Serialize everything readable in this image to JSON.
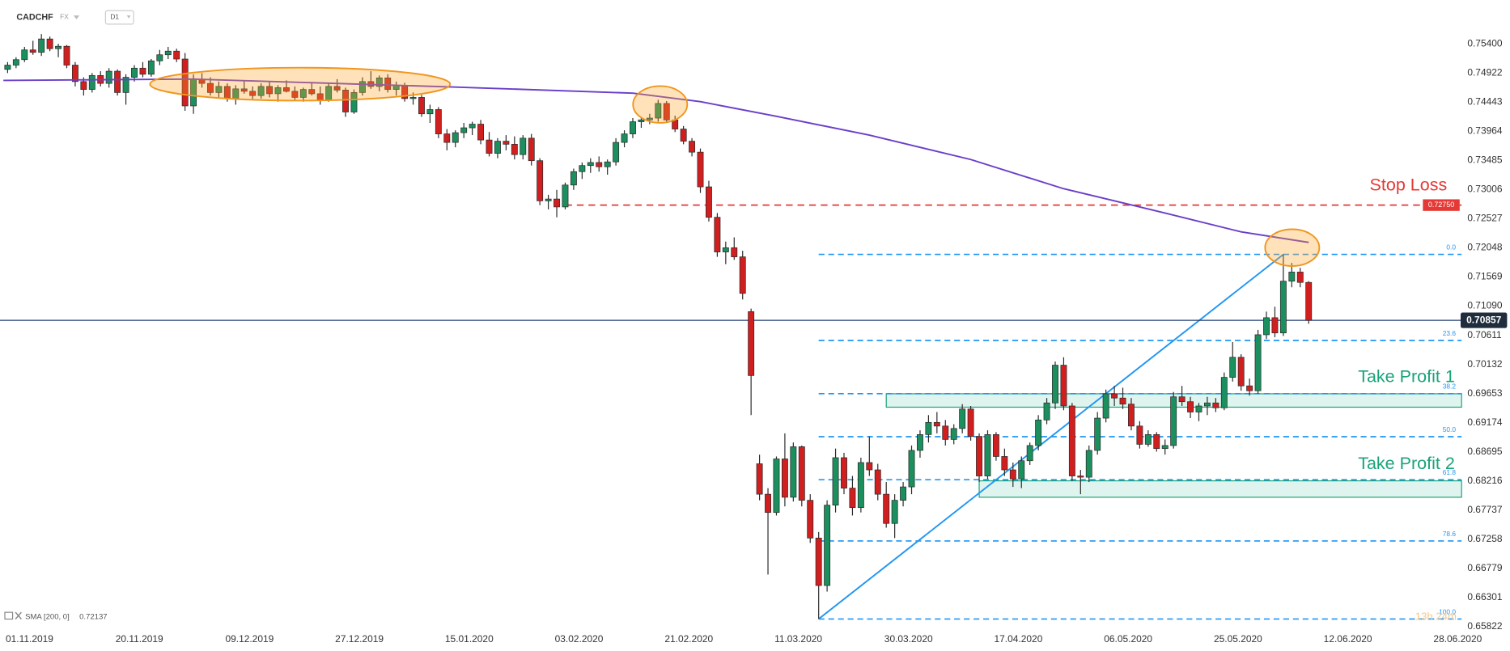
{
  "chart_data": {
    "type": "candlestick",
    "symbol": "CADCHF",
    "market": "FX",
    "timeframe": "D1",
    "colors": {
      "up": "#1b8f5e",
      "down": "#d11f1f",
      "outline": "#2b2b2b"
    },
    "candles": [
      [
        0.7498,
        0.751,
        0.7492,
        0.7505
      ],
      [
        0.7505,
        0.7518,
        0.75,
        0.7514
      ],
      [
        0.7514,
        0.7535,
        0.751,
        0.753
      ],
      [
        0.753,
        0.7545,
        0.7522,
        0.7526
      ],
      [
        0.7526,
        0.7556,
        0.752,
        0.7548
      ],
      [
        0.7548,
        0.7552,
        0.7528,
        0.7532
      ],
      [
        0.7532,
        0.754,
        0.7518,
        0.7536
      ],
      [
        0.7536,
        0.7538,
        0.75,
        0.7505
      ],
      [
        0.7505,
        0.751,
        0.747,
        0.7478
      ],
      [
        0.7478,
        0.7485,
        0.7455,
        0.7465
      ],
      [
        0.7465,
        0.7492,
        0.746,
        0.7488
      ],
      [
        0.7488,
        0.7495,
        0.747,
        0.7475
      ],
      [
        0.7475,
        0.75,
        0.7468,
        0.7495
      ],
      [
        0.7495,
        0.7498,
        0.7455,
        0.746
      ],
      [
        0.746,
        0.749,
        0.744,
        0.7485
      ],
      [
        0.7485,
        0.7505,
        0.7478,
        0.75
      ],
      [
        0.75,
        0.751,
        0.7485,
        0.749
      ],
      [
        0.749,
        0.7515,
        0.7486,
        0.7512
      ],
      [
        0.7512,
        0.753,
        0.7505,
        0.7522
      ],
      [
        0.7522,
        0.7535,
        0.7515,
        0.7528
      ],
      [
        0.7528,
        0.7532,
        0.751,
        0.7515
      ],
      [
        0.7515,
        0.7525,
        0.743,
        0.7438
      ],
      [
        0.7438,
        0.749,
        0.7425,
        0.7482
      ],
      [
        0.7482,
        0.7492,
        0.7468,
        0.7475
      ],
      [
        0.7475,
        0.7485,
        0.7455,
        0.746
      ],
      [
        0.746,
        0.7478,
        0.7452,
        0.747
      ],
      [
        0.747,
        0.7475,
        0.7445,
        0.745
      ],
      [
        0.745,
        0.7472,
        0.744,
        0.7466
      ],
      [
        0.7466,
        0.748,
        0.7458,
        0.7462
      ],
      [
        0.7462,
        0.747,
        0.7448,
        0.7455
      ],
      [
        0.7455,
        0.7475,
        0.745,
        0.747
      ],
      [
        0.747,
        0.7478,
        0.7452,
        0.7458
      ],
      [
        0.7458,
        0.7472,
        0.7445,
        0.7468
      ],
      [
        0.7468,
        0.748,
        0.746,
        0.7462
      ],
      [
        0.7462,
        0.747,
        0.7448,
        0.7452
      ],
      [
        0.7452,
        0.7468,
        0.7445,
        0.7465
      ],
      [
        0.7465,
        0.7475,
        0.7455,
        0.7458
      ],
      [
        0.7458,
        0.747,
        0.744,
        0.7448
      ],
      [
        0.7448,
        0.7475,
        0.7445,
        0.747
      ],
      [
        0.747,
        0.7482,
        0.746,
        0.7464
      ],
      [
        0.7464,
        0.7468,
        0.742,
        0.7428
      ],
      [
        0.7428,
        0.7465,
        0.7425,
        0.746
      ],
      [
        0.746,
        0.7485,
        0.7455,
        0.7478
      ],
      [
        0.7478,
        0.7495,
        0.7466,
        0.747
      ],
      [
        0.747,
        0.7488,
        0.7462,
        0.7484
      ],
      [
        0.7484,
        0.749,
        0.746,
        0.7465
      ],
      [
        0.7465,
        0.7478,
        0.7455,
        0.7472
      ],
      [
        0.7472,
        0.7476,
        0.7445,
        0.745
      ],
      [
        0.745,
        0.746,
        0.744,
        0.7452
      ],
      [
        0.7452,
        0.7456,
        0.742,
        0.7425
      ],
      [
        0.7425,
        0.744,
        0.741,
        0.7432
      ],
      [
        0.7432,
        0.7436,
        0.7385,
        0.7392
      ],
      [
        0.7392,
        0.74,
        0.7365,
        0.7378
      ],
      [
        0.7378,
        0.7398,
        0.737,
        0.7394
      ],
      [
        0.7394,
        0.741,
        0.7385,
        0.7402
      ],
      [
        0.7402,
        0.7412,
        0.739,
        0.7408
      ],
      [
        0.7408,
        0.7415,
        0.7375,
        0.7382
      ],
      [
        0.7382,
        0.7395,
        0.7355,
        0.736
      ],
      [
        0.736,
        0.7385,
        0.7352,
        0.738
      ],
      [
        0.738,
        0.739,
        0.7365,
        0.7375
      ],
      [
        0.7375,
        0.7388,
        0.735,
        0.7358
      ],
      [
        0.7358,
        0.739,
        0.735,
        0.7385
      ],
      [
        0.7385,
        0.7392,
        0.734,
        0.7348
      ],
      [
        0.7348,
        0.7352,
        0.7275,
        0.7282
      ],
      [
        0.7282,
        0.7292,
        0.7268,
        0.7285
      ],
      [
        0.7285,
        0.73,
        0.7255,
        0.7272
      ],
      [
        0.7272,
        0.7312,
        0.7268,
        0.7308
      ],
      [
        0.7308,
        0.7335,
        0.73,
        0.733
      ],
      [
        0.733,
        0.7345,
        0.7318,
        0.734
      ],
      [
        0.734,
        0.7352,
        0.7328,
        0.7345
      ],
      [
        0.7345,
        0.7355,
        0.733,
        0.7338
      ],
      [
        0.7338,
        0.735,
        0.7325,
        0.7346
      ],
      [
        0.7346,
        0.7385,
        0.734,
        0.7378
      ],
      [
        0.7378,
        0.7398,
        0.737,
        0.7392
      ],
      [
        0.7392,
        0.7418,
        0.7385,
        0.7412
      ],
      [
        0.7412,
        0.742,
        0.7402,
        0.7415
      ],
      [
        0.7415,
        0.7425,
        0.7408,
        0.7418
      ],
      [
        0.7418,
        0.7448,
        0.7412,
        0.7442
      ],
      [
        0.7442,
        0.7446,
        0.741,
        0.7415
      ],
      [
        0.7415,
        0.7422,
        0.7395,
        0.74
      ],
      [
        0.74,
        0.7405,
        0.7375,
        0.738
      ],
      [
        0.738,
        0.7385,
        0.7355,
        0.7362
      ],
      [
        0.7362,
        0.7368,
        0.7295,
        0.7305
      ],
      [
        0.7305,
        0.7315,
        0.7248,
        0.7255
      ],
      [
        0.7255,
        0.7262,
        0.719,
        0.7198
      ],
      [
        0.7198,
        0.7215,
        0.7178,
        0.7205
      ],
      [
        0.7205,
        0.7222,
        0.7185,
        0.719
      ],
      [
        0.719,
        0.72,
        0.712,
        0.713
      ],
      [
        0.71,
        0.7105,
        0.693,
        0.6995
      ],
      [
        0.685,
        0.6865,
        0.679,
        0.68
      ],
      [
        0.68,
        0.681,
        0.6668,
        0.677
      ],
      [
        0.677,
        0.6862,
        0.6765,
        0.6858
      ],
      [
        0.6858,
        0.69,
        0.678,
        0.6795
      ],
      [
        0.6795,
        0.6885,
        0.6788,
        0.6878
      ],
      [
        0.6878,
        0.688,
        0.678,
        0.679
      ],
      [
        0.679,
        0.68,
        0.672,
        0.6728
      ],
      [
        0.6728,
        0.6738,
        0.6595,
        0.665
      ],
      [
        0.665,
        0.679,
        0.664,
        0.6782
      ],
      [
        0.6782,
        0.6875,
        0.677,
        0.686
      ],
      [
        0.686,
        0.6868,
        0.68,
        0.681
      ],
      [
        0.681,
        0.683,
        0.6765,
        0.6778
      ],
      [
        0.6778,
        0.686,
        0.677,
        0.6852
      ],
      [
        0.6852,
        0.6895,
        0.683,
        0.684
      ],
      [
        0.684,
        0.685,
        0.679,
        0.68
      ],
      [
        0.68,
        0.682,
        0.6745,
        0.6752
      ],
      [
        0.6752,
        0.68,
        0.6728,
        0.679
      ],
      [
        0.679,
        0.682,
        0.678,
        0.6812
      ],
      [
        0.6812,
        0.688,
        0.68,
        0.6872
      ],
      [
        0.6872,
        0.6905,
        0.686,
        0.6898
      ],
      [
        0.6898,
        0.693,
        0.6885,
        0.6918
      ],
      [
        0.6918,
        0.6935,
        0.69,
        0.6912
      ],
      [
        0.6912,
        0.6922,
        0.688,
        0.689
      ],
      [
        0.689,
        0.6915,
        0.6882,
        0.6908
      ],
      [
        0.6908,
        0.6948,
        0.69,
        0.694
      ],
      [
        0.694,
        0.6945,
        0.6888,
        0.6895
      ],
      [
        0.6895,
        0.69,
        0.682,
        0.683
      ],
      [
        0.683,
        0.6905,
        0.6825,
        0.6898
      ],
      [
        0.6898,
        0.6902,
        0.6855,
        0.6862
      ],
      [
        0.6862,
        0.6875,
        0.683,
        0.684
      ],
      [
        0.684,
        0.6852,
        0.6812,
        0.6825
      ],
      [
        0.6825,
        0.6862,
        0.681,
        0.6855
      ],
      [
        0.6855,
        0.6885,
        0.6848,
        0.688
      ],
      [
        0.688,
        0.693,
        0.6872,
        0.6922
      ],
      [
        0.6922,
        0.6958,
        0.6915,
        0.695
      ],
      [
        0.695,
        0.7018,
        0.694,
        0.7012
      ],
      [
        0.7012,
        0.7025,
        0.6938,
        0.6945
      ],
      [
        0.6945,
        0.695,
        0.6822,
        0.683
      ],
      [
        0.683,
        0.684,
        0.68,
        0.6828
      ],
      [
        0.6828,
        0.688,
        0.682,
        0.6872
      ],
      [
        0.6872,
        0.6935,
        0.6865,
        0.6925
      ],
      [
        0.6925,
        0.6972,
        0.6918,
        0.6965
      ],
      [
        0.6965,
        0.6978,
        0.6945,
        0.6958
      ],
      [
        0.6958,
        0.6975,
        0.694,
        0.6948
      ],
      [
        0.6948,
        0.6958,
        0.6905,
        0.6912
      ],
      [
        0.6912,
        0.692,
        0.6875,
        0.6882
      ],
      [
        0.6882,
        0.6905,
        0.6878,
        0.6898
      ],
      [
        0.6898,
        0.6902,
        0.687,
        0.6875
      ],
      [
        0.6875,
        0.689,
        0.6865,
        0.688
      ],
      [
        0.688,
        0.6968,
        0.6875,
        0.696
      ],
      [
        0.696,
        0.6978,
        0.6945,
        0.6952
      ],
      [
        0.6952,
        0.696,
        0.6925,
        0.6935
      ],
      [
        0.6935,
        0.695,
        0.692,
        0.6945
      ],
      [
        0.6945,
        0.696,
        0.693,
        0.695
      ],
      [
        0.695,
        0.6958,
        0.6935,
        0.6942
      ],
      [
        0.6942,
        0.7,
        0.6938,
        0.6992
      ],
      [
        0.6992,
        0.705,
        0.6985,
        0.7025
      ],
      [
        0.7025,
        0.703,
        0.697,
        0.6978
      ],
      [
        0.6978,
        0.699,
        0.6962,
        0.697
      ],
      [
        0.697,
        0.707,
        0.6965,
        0.7062
      ],
      [
        0.7062,
        0.71,
        0.7055,
        0.709
      ],
      [
        0.709,
        0.7108,
        0.7058,
        0.7065
      ],
      [
        0.7065,
        0.7194,
        0.706,
        0.715
      ],
      [
        0.715,
        0.718,
        0.714,
        0.7165
      ],
      [
        0.7165,
        0.7172,
        0.714,
        0.7148
      ],
      [
        0.7148,
        0.715,
        0.708,
        0.70857
      ]
    ],
    "xlim": [
      -0.9,
      172.1
    ],
    "xticks": [
      {
        "value": 0,
        "label": "01.11.2019"
      },
      {
        "value": 13,
        "label": "20.11.2019"
      },
      {
        "value": 26,
        "label": "09.12.2019"
      },
      {
        "value": 39,
        "label": "27.12.2019"
      },
      {
        "value": 52,
        "label": "15.01.2020"
      },
      {
        "value": 65,
        "label": "03.02.2020"
      },
      {
        "value": 78,
        "label": "21.02.2020"
      },
      {
        "value": 91,
        "label": "11.03.2020"
      },
      {
        "value": 104,
        "label": "30.03.2020"
      },
      {
        "value": 117,
        "label": "17.04.2020"
      },
      {
        "value": 130,
        "label": "06.05.2020"
      },
      {
        "value": 143,
        "label": "25.05.2020"
      },
      {
        "value": 156,
        "label": "12.06.2020"
      },
      {
        "value": 169,
        "label": "28.06.2020"
      }
    ],
    "ylim": [
      0.6571,
      0.7612
    ],
    "yticks": [
      {
        "value": 0.754,
        "label": "0.75400"
      },
      0.74922,
      0.74443,
      0.73964,
      0.73485,
      0.73006,
      0.72527,
      0.72048,
      0.71569,
      {
        "value": 0.7109,
        "label": "0.71090"
      },
      0.70611,
      0.70132,
      0.69653,
      0.69174,
      0.68695,
      0.68216,
      0.67737,
      0.67258,
      0.66779,
      0.66301,
      0.65822
    ],
    "sma": {
      "name": "SMA [200, 0]",
      "color": "#6a3fc8",
      "x": [
        -0.5,
        22,
        53,
        74,
        82,
        91,
        102,
        114,
        125,
        137,
        146,
        154
      ],
      "values": [
        0.748,
        0.7482,
        0.7469,
        0.7459,
        0.7445,
        0.7421,
        0.739,
        0.735,
        0.7302,
        0.7262,
        0.7231,
        0.72137
      ]
    },
    "last_price": 0.70857,
    "stop_loss": {
      "label": "Stop Loss",
      "value": 0.7275,
      "value_label": "0.72750",
      "start": 66,
      "color": "#e53935"
    },
    "take_profit_zones": [
      {
        "label": "Take Profit 1",
        "from": 0.6943,
        "to": 0.6965,
        "start": 104
      },
      {
        "label": "Take Profit 2",
        "from": 0.6795,
        "to": 0.6822,
        "start": 115
      }
    ],
    "take_profit_color": "#1aa37a",
    "fibonacci": {
      "color": "#2196f3",
      "levels": [
        {
          "value": 0,
          "label": "0.0"
        },
        23.6,
        38.2,
        {
          "value": 50,
          "label": "50.0"
        },
        61.8,
        78.6,
        {
          "value": 100,
          "label": "100.0"
        }
      ]
    },
    "countdown": "13h 24m"
  }
}
